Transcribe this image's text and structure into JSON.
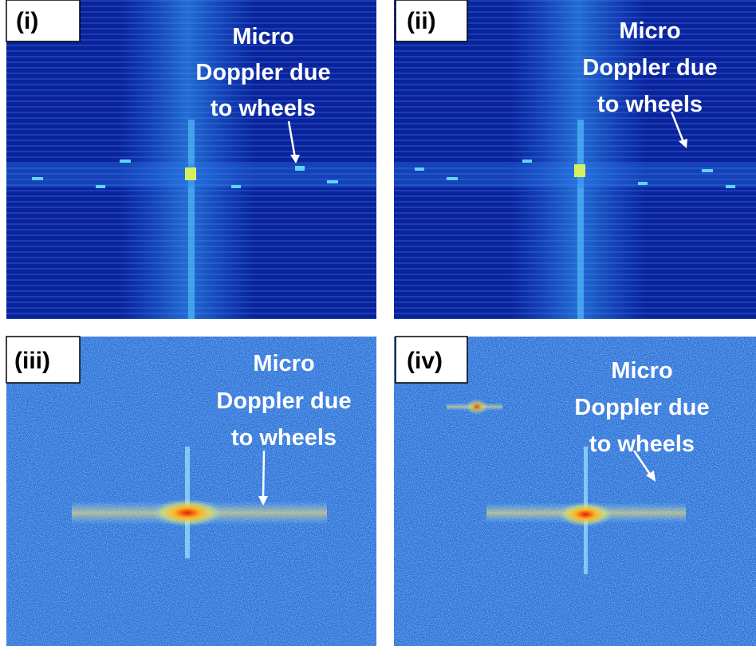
{
  "panels": [
    {
      "label": "(i)",
      "annotation": [
        "Micro",
        "Doppler due",
        "to wheels"
      ]
    },
    {
      "label": "(ii)",
      "annotation": [
        "Micro",
        "Doppler due",
        "to wheels"
      ]
    },
    {
      "label": "(iii)",
      "annotation": [
        "Micro",
        "Doppler due",
        "to wheels"
      ]
    },
    {
      "label": "(iv)",
      "annotation": [
        "Micro",
        "Doppler due",
        "to wheels"
      ]
    }
  ]
}
